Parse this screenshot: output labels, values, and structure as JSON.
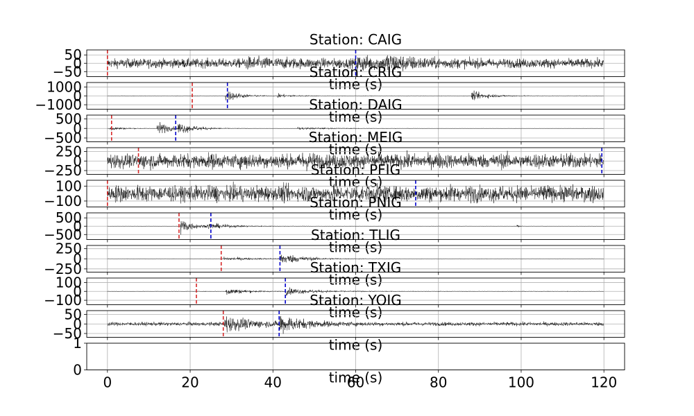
{
  "chart_data": {
    "type": "line",
    "xlabel": "time (s)",
    "xlim": [
      -5,
      125
    ],
    "x_ticks": [
      0,
      20,
      40,
      60,
      80,
      100,
      120
    ],
    "grid": true,
    "colors": {
      "trace": "#000000",
      "p_pick": "#d62728",
      "s_pick": "#0000cc",
      "grid": "#b0b0b0"
    },
    "panels": [
      {
        "title": "Station: CAIG",
        "ylim": [
          -80,
          80
        ],
        "yticks": [
          50,
          0,
          -50
        ],
        "yticklabels": [
          "50",
          "0",
          "−50"
        ],
        "noise": 25,
        "events": [
          {
            "t": 33,
            "amp": 15,
            "dur": 30
          },
          {
            "t": 60,
            "amp": 25,
            "dur": 20
          },
          {
            "t": 67,
            "amp": 30,
            "dur": 20
          }
        ],
        "p_pick": 0,
        "s_pick": 60
      },
      {
        "title": "Station: CRIG",
        "ylim": [
          -1500,
          1500
        ],
        "yticks": [
          1000,
          0,
          -1000
        ],
        "yticklabels": [
          "1000",
          "0",
          "−1000"
        ],
        "noise": 25,
        "events": [
          {
            "t": 28.5,
            "amp": 650,
            "dur": 10
          },
          {
            "t": 41,
            "amp": 200,
            "dur": 12
          },
          {
            "t": 88,
            "amp": 450,
            "dur": 14
          }
        ],
        "p_pick": 20.5,
        "s_pick": 29
      },
      {
        "title": "Station: DAIG",
        "ylim": [
          -700,
          700
        ],
        "yticks": [
          500,
          0,
          -500
        ],
        "yticklabels": [
          "500",
          "0",
          "−500"
        ],
        "noise": 6,
        "events": [
          {
            "t": 0.5,
            "amp": 120,
            "dur": 10
          },
          {
            "t": 12,
            "amp": 380,
            "dur": 8
          },
          {
            "t": 17,
            "amp": 250,
            "dur": 14
          },
          {
            "t": 46,
            "amp": 60,
            "dur": 30
          }
        ],
        "p_pick": 1,
        "s_pick": 16.5
      },
      {
        "title": "Station: MEIG",
        "ylim": [
          -350,
          350
        ],
        "yticks": [
          250,
          0,
          -250
        ],
        "yticklabels": [
          "250",
          "0",
          "−250"
        ],
        "noise": 190,
        "events": [
          {
            "t": 47,
            "amp": 80,
            "dur": 6
          }
        ],
        "p_pick": 7.5,
        "s_pick": 119.5
      },
      {
        "title": "Station: PFIG",
        "ylim": [
          -180,
          180
        ],
        "yticks": [
          100,
          -100
        ],
        "yticklabels": [
          "100",
          "−100"
        ],
        "noise": 110,
        "events": [],
        "p_pick": 0,
        "s_pick": 74.5
      },
      {
        "title": "Station: PNIG",
        "ylim": [
          -800,
          800
        ],
        "yticks": [
          500,
          0,
          -500
        ],
        "yticklabels": [
          "500",
          "0",
          "−500"
        ],
        "noise": 10,
        "events": [
          {
            "t": 17.7,
            "amp": 520,
            "dur": 8
          },
          {
            "t": 24,
            "amp": 140,
            "dur": 22
          },
          {
            "t": 99,
            "amp": 70,
            "dur": 2
          }
        ],
        "p_pick": 17.3,
        "s_pick": 25
      },
      {
        "title": "Station: TLIG",
        "ylim": [
          -330,
          330
        ],
        "yticks": [
          250,
          0,
          -250
        ],
        "yticklabels": [
          "250",
          "0",
          "−250"
        ],
        "noise": 4,
        "events": [
          {
            "t": 28,
            "amp": 40,
            "dur": 30
          },
          {
            "t": 41.7,
            "amp": 130,
            "dur": 16
          }
        ],
        "p_pick": 27.5,
        "s_pick": 41.7
      },
      {
        "title": "Station: TXIG",
        "ylim": [
          -150,
          150
        ],
        "yticks": [
          100,
          0,
          -100
        ],
        "yticklabels": [
          "100",
          "0",
          "−100"
        ],
        "noise": 3,
        "events": [
          {
            "t": 28.5,
            "amp": 40,
            "dur": 14
          },
          {
            "t": 43,
            "amp": 35,
            "dur": 22
          }
        ],
        "p_pick": 21.5,
        "s_pick": 43
      },
      {
        "title": "Station: YOIG",
        "ylim": [
          -70,
          70
        ],
        "yticks": [
          50,
          0,
          -50
        ],
        "yticklabels": [
          "50",
          "0",
          "−50"
        ],
        "noise": 9,
        "events": [
          {
            "t": 28.2,
            "amp": 38,
            "dur": 18
          },
          {
            "t": 41.5,
            "amp": 40,
            "dur": 16
          }
        ],
        "p_pick": 28,
        "s_pick": 41.5
      },
      {
        "title": "",
        "ylim": [
          0,
          1
        ],
        "yticks": [
          1,
          0
        ],
        "yticklabels": [
          "1",
          "0"
        ],
        "empty": true
      }
    ]
  }
}
